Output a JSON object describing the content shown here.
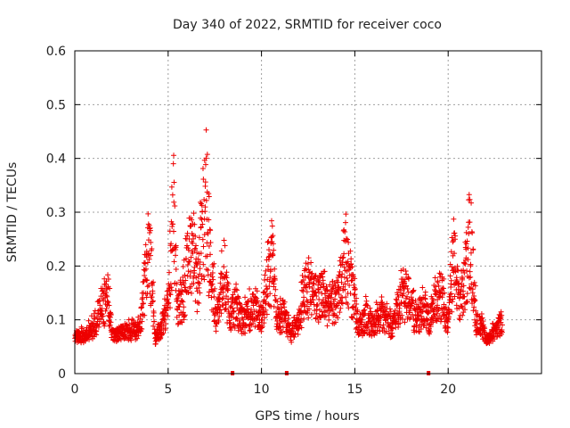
{
  "chart_data": {
    "type": "scatter",
    "title": "Day 340 of 2022, SRMTID for receiver coco",
    "xlabel": "GPS time / hours",
    "ylabel": "SRMTID / TECUs",
    "xlim": [
      0,
      25
    ],
    "ylim": [
      0,
      0.6
    ],
    "x_ticks": [
      0,
      5,
      10,
      15,
      20
    ],
    "x_tick_labels": [
      "0",
      "5",
      "10",
      "15",
      "20"
    ],
    "y_ticks": [
      0,
      0.1,
      0.2,
      0.3,
      0.4,
      0.5,
      0.6
    ],
    "y_tick_labels": [
      "0",
      "0.1",
      "0.2",
      "0.3",
      "0.4",
      "0.5",
      "0.6"
    ],
    "grid": true,
    "marker": "+",
    "color": "#ee0000",
    "series": [
      {
        "name": "SRMTID",
        "profile_x": [
          0.0,
          0.5,
          1.0,
          1.5,
          1.8,
          2.0,
          2.5,
          3.0,
          3.5,
          3.9,
          4.0,
          4.3,
          4.6,
          5.0,
          5.3,
          5.5,
          5.8,
          6.2,
          6.6,
          7.0,
          7.3,
          7.6,
          8.0,
          8.3,
          8.6,
          9.0,
          9.5,
          10.0,
          10.3,
          10.6,
          10.8,
          11.2,
          11.6,
          12.0,
          12.4,
          12.8,
          13.2,
          13.6,
          14.0,
          14.5,
          14.8,
          15.2,
          15.6,
          16.0,
          16.5,
          17.0,
          17.5,
          17.9,
          18.3,
          18.7,
          19.0,
          19.3,
          19.6,
          20.0,
          20.3,
          20.6,
          20.9,
          21.2,
          21.5,
          21.8,
          22.1,
          22.5,
          22.9
        ],
        "profile_y": [
          0.08,
          0.08,
          0.1,
          0.16,
          0.18,
          0.08,
          0.09,
          0.09,
          0.1,
          0.3,
          0.33,
          0.07,
          0.1,
          0.15,
          0.42,
          0.14,
          0.18,
          0.32,
          0.22,
          0.43,
          0.25,
          0.12,
          0.25,
          0.13,
          0.16,
          0.12,
          0.15,
          0.13,
          0.22,
          0.27,
          0.12,
          0.14,
          0.08,
          0.12,
          0.22,
          0.18,
          0.19,
          0.15,
          0.17,
          0.28,
          0.22,
          0.1,
          0.13,
          0.11,
          0.14,
          0.1,
          0.18,
          0.17,
          0.12,
          0.15,
          0.12,
          0.16,
          0.19,
          0.11,
          0.3,
          0.15,
          0.22,
          0.33,
          0.12,
          0.1,
          0.07,
          0.09,
          0.12
        ],
        "point_count": 2300
      }
    ],
    "outages": [
      {
        "x": 8.45,
        "y": 0
      },
      {
        "x": 11.35,
        "y": 0
      },
      {
        "x": 18.95,
        "y": 0
      }
    ]
  }
}
